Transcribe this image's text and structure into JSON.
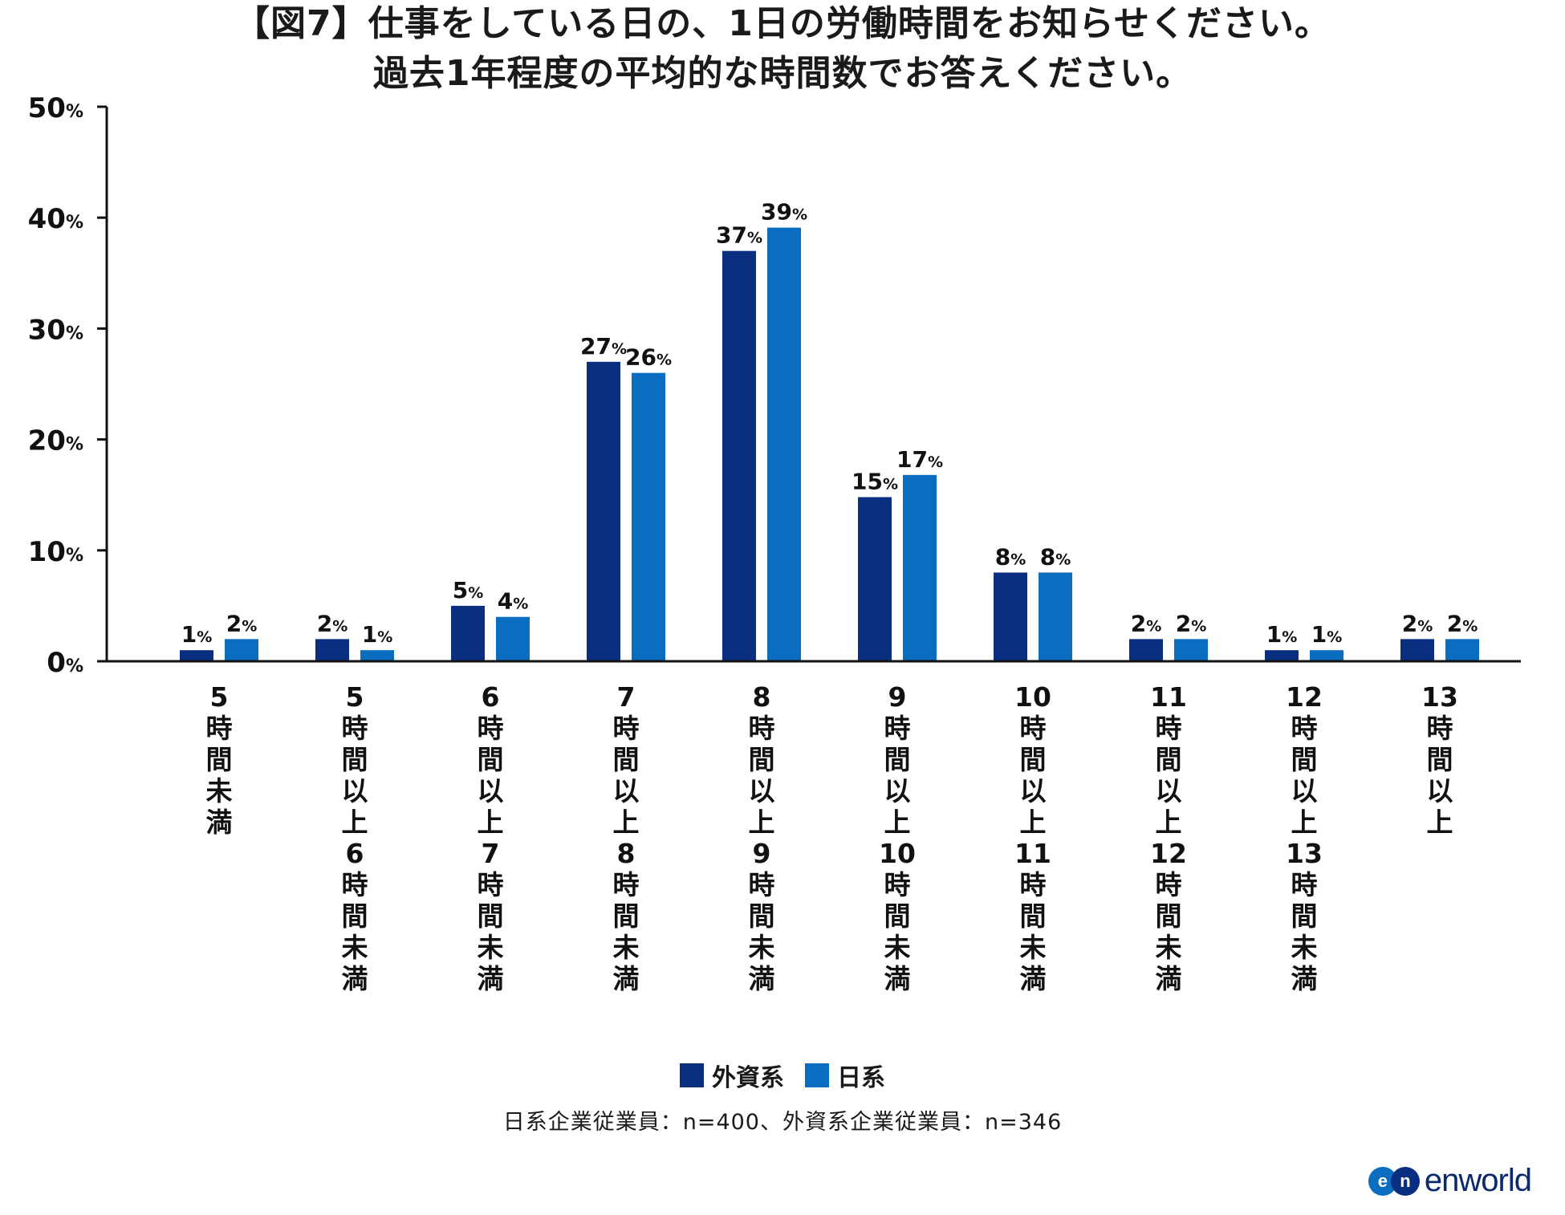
{
  "title": {
    "line1": "【図7】仕事をしている日の、1日の労働時間をお知らせください。",
    "line2": "過去1年程度の平均的な時間数でお答えください。"
  },
  "colors": {
    "foreign": "#0b2f80",
    "japanese": "#0a6dc0"
  },
  "chart_data": {
    "type": "bar",
    "title": "【図7】仕事をしている日の、1日の労働時間をお知らせください。過去1年程度の平均的な時間数でお答えください。",
    "xlabel": "",
    "ylabel": "",
    "ylim": [
      0,
      50
    ],
    "yticks": [
      {
        "value": 0,
        "label": "0"
      },
      {
        "value": 10,
        "label": "10"
      },
      {
        "value": 20,
        "label": "20"
      },
      {
        "value": 30,
        "label": "30"
      },
      {
        "value": 40,
        "label": "40"
      },
      {
        "value": 50,
        "label": "50"
      }
    ],
    "unit": "%",
    "grid": false,
    "legend_position": "bottom-center",
    "categories": [
      [
        "5",
        "時",
        "間",
        "未",
        "満"
      ],
      [
        "5",
        "時",
        "間",
        "以",
        "上",
        "6",
        "時",
        "間",
        "未",
        "満"
      ],
      [
        "6",
        "時",
        "間",
        "以",
        "上",
        "7",
        "時",
        "間",
        "未",
        "満"
      ],
      [
        "7",
        "時",
        "間",
        "以",
        "上",
        "8",
        "時",
        "間",
        "未",
        "満"
      ],
      [
        "8",
        "時",
        "間",
        "以",
        "上",
        "9",
        "時",
        "間",
        "未",
        "満"
      ],
      [
        "9",
        "時",
        "間",
        "以",
        "上",
        "10",
        "時",
        "間",
        "未",
        "満"
      ],
      [
        "10",
        "時",
        "間",
        "以",
        "上",
        "11",
        "時",
        "間",
        "未",
        "満"
      ],
      [
        "11",
        "時",
        "間",
        "以",
        "上",
        "12",
        "時",
        "間",
        "未",
        "満"
      ],
      [
        "12",
        "時",
        "間",
        "以",
        "上",
        "13",
        "時",
        "間",
        "未",
        "満"
      ],
      [
        "13",
        "時",
        "間",
        "以",
        "上"
      ]
    ],
    "series": [
      {
        "name": "外資系",
        "values": [
          1,
          2,
          5,
          27,
          37,
          15,
          8,
          2,
          1,
          2
        ],
        "plot_values": [
          1,
          2,
          5,
          27,
          37,
          14.8,
          8,
          2,
          1,
          2
        ]
      },
      {
        "name": "日系",
        "values": [
          2,
          1,
          4,
          26,
          39,
          17,
          8,
          2,
          1,
          2
        ],
        "plot_values": [
          2,
          1,
          4,
          26,
          39.1,
          16.8,
          8,
          2,
          1,
          2
        ]
      }
    ]
  },
  "legend": [
    {
      "label": "外資系"
    },
    {
      "label": "日系"
    }
  ],
  "note": "日系企業従業員：n=400、外資系企業従業員：n=346",
  "logo": {
    "mark_left": "e",
    "mark_right": "n",
    "text": "enworld"
  }
}
